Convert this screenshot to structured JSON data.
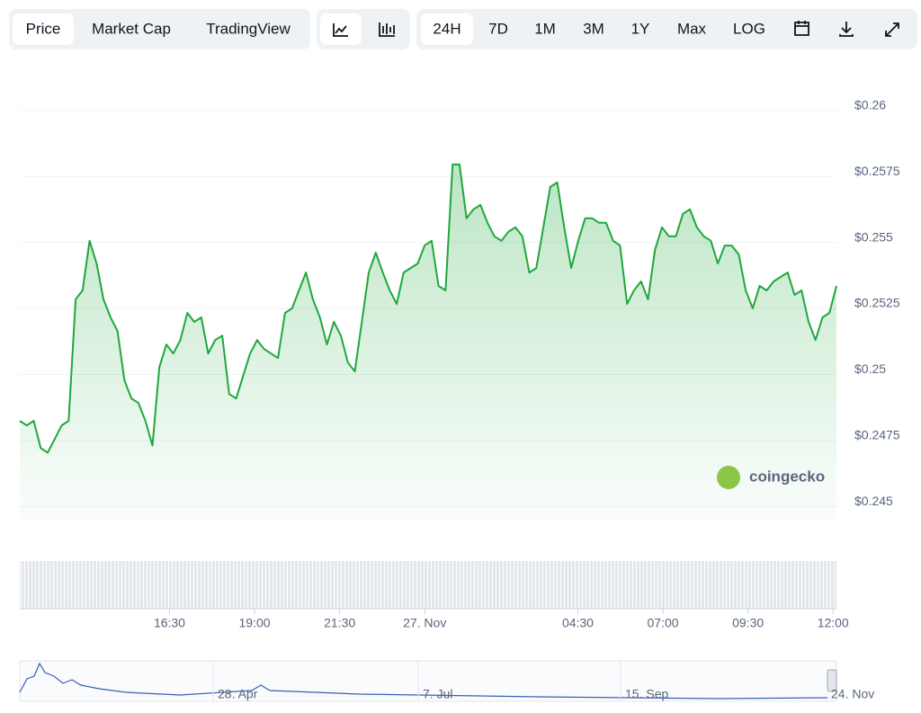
{
  "toolbar": {
    "views": [
      "Price",
      "Market Cap",
      "TradingView"
    ],
    "ranges": [
      "24H",
      "7D",
      "1M",
      "3M",
      "1Y",
      "Max",
      "LOG"
    ]
  },
  "watermark": "coingecko",
  "navigator": {
    "labels": [
      "28. Apr",
      "7. Jul",
      "15. Sep",
      "24. Nov"
    ]
  },
  "chart_data": {
    "type": "line",
    "color": "#1fa83c",
    "series": [
      {
        "color": "#1fa83c",
        "values": [
          0.24824,
          0.24807,
          0.24824,
          0.24721,
          0.24704,
          0.24755,
          0.24807,
          0.24824,
          0.25284,
          0.25318,
          0.25506,
          0.2542,
          0.25284,
          0.25216,
          0.25165,
          0.24977,
          0.24909,
          0.24892,
          0.24824,
          0.24731,
          0.25028,
          0.25113,
          0.25079,
          0.2513,
          0.25233,
          0.25199,
          0.25216,
          0.25079,
          0.2513,
          0.25147,
          0.24926,
          0.24909,
          0.24994,
          0.25079,
          0.2513,
          0.25096,
          0.25079,
          0.25062,
          0.25233,
          0.2525,
          0.25318,
          0.25386,
          0.25284,
          0.25216,
          0.25113,
          0.25199,
          0.25147,
          0.25045,
          0.25011,
          0.25199,
          0.25386,
          0.25461,
          0.25386,
          0.25318,
          0.25267,
          0.25386,
          0.25403,
          0.2542,
          0.25488,
          0.25506,
          0.25335,
          0.25318,
          0.25795,
          0.25795,
          0.25591,
          0.25625,
          0.25642,
          0.25574,
          0.25523,
          0.25506,
          0.2554,
          0.25557,
          0.25523,
          0.25386,
          0.25403,
          0.25557,
          0.2571,
          0.25727,
          0.25557,
          0.25403,
          0.25506,
          0.25591,
          0.25591,
          0.25574,
          0.25574,
          0.25506,
          0.25488,
          0.25267,
          0.25318,
          0.25352,
          0.25284,
          0.25471,
          0.25557,
          0.25523,
          0.25523,
          0.25608,
          0.25625,
          0.25557,
          0.25523,
          0.25506,
          0.2542,
          0.25488,
          0.25488,
          0.25454,
          0.25318,
          0.2525,
          0.25335,
          0.25318,
          0.25352,
          0.25369,
          0.25386,
          0.25301,
          0.25318,
          0.25199,
          0.2513,
          0.25216,
          0.25233,
          0.25335
        ]
      }
    ],
    "ylim": [
      0.2445,
      0.2605
    ],
    "yticks": [
      {
        "value": 0.26,
        "label": "$0.26"
      },
      {
        "value": 0.2575,
        "label": "$0.2575"
      },
      {
        "value": 0.255,
        "label": "$0.255"
      },
      {
        "value": 0.2525,
        "label": "$0.2525"
      },
      {
        "value": 0.25,
        "label": "$0.25"
      },
      {
        "value": 0.2475,
        "label": "$0.2475"
      },
      {
        "value": 0.245,
        "label": "$0.245"
      }
    ],
    "xlim": [
      12.1,
      36.1
    ],
    "xticks": [
      {
        "value": 16.5,
        "label": "16:30"
      },
      {
        "value": 19,
        "label": "19:00"
      },
      {
        "value": 21.5,
        "label": "21:30"
      },
      {
        "value": 24,
        "label": "27. Nov"
      },
      {
        "value": 28.5,
        "label": "04:30"
      },
      {
        "value": 31,
        "label": "07:00"
      },
      {
        "value": 33.5,
        "label": "09:30"
      },
      {
        "value": 36,
        "label": "12:00"
      }
    ],
    "grid": true
  }
}
